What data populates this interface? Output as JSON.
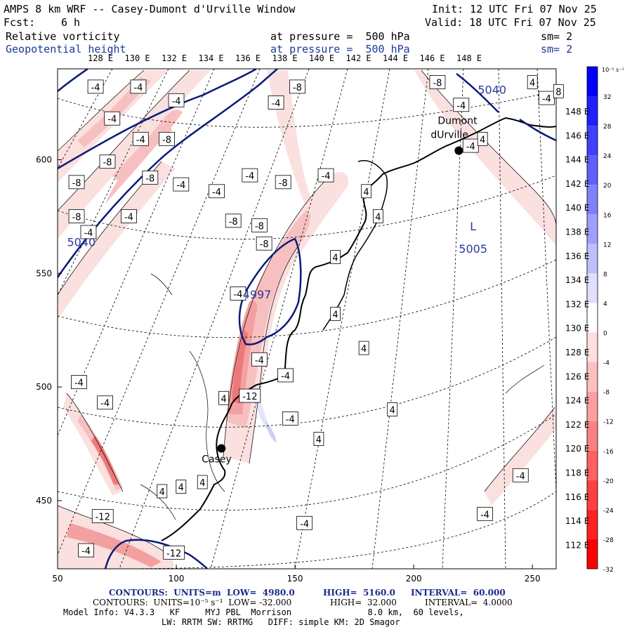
{
  "header": {
    "title": "AMPS 8 km WRF -- Casey-Dumont d'Urville Window",
    "init": "Init: 12 UTC Fri 07 Nov 25",
    "fcst_label": "Fcst:",
    "fcst_value": "6 h",
    "valid": "Valid: 18 UTC Fri 07 Nov 25",
    "field1_name": "Relative vorticity",
    "field1_level": "at pressure =  500 hPa",
    "field1_sm": "sm= 2",
    "field2_name": "Geopotential height",
    "field2_level": "at pressure =  500 hPa",
    "field2_sm": "sm= 2"
  },
  "colors": {
    "neg4": "#fbe0e0",
    "neg8": "#f7c0c0",
    "neg12": "#f3a0a0",
    "neg16": "#ee7878",
    "pos4": "#e3e6fb",
    "height_contour": "#0a1a7a",
    "coast": "#000000"
  },
  "chart_data": {
    "type": "contour-map",
    "x_axis": {
      "min": 50,
      "max": 260,
      "ticks": [
        50,
        100,
        150,
        200,
        250
      ]
    },
    "y_axis": {
      "min": 420,
      "max": 640,
      "ticks": [
        450,
        500,
        550,
        600
      ]
    },
    "lon_labels": [
      "128 E",
      "130 E",
      "132 E",
      "134 E",
      "136 E",
      "138 E",
      "140 E",
      "142 E",
      "144 E",
      "146 E",
      "148 E"
    ],
    "lat_labels_right": [
      "148 E",
      "146 E",
      "144 E",
      "142 E",
      "140 E",
      "138 E",
      "136 E",
      "134 E",
      "132 E",
      "130 E",
      "128 E",
      "126 E",
      "124 E",
      "122 E",
      "120 E",
      "118 E",
      "116 E",
      "114 E",
      "112 E"
    ],
    "colorbar": {
      "unit_label": "10⁻⁵ s⁻¹",
      "levels": [
        32,
        28,
        24,
        20,
        16,
        12,
        8,
        4,
        0,
        -4,
        -8,
        -12,
        -16,
        -20,
        -24,
        -28,
        -32
      ],
      "labels": [
        "32",
        "28",
        "24",
        "20",
        "16",
        "12",
        "8",
        "4",
        "0",
        "-4",
        "-8",
        "-12",
        "-16",
        "-20",
        "-24",
        "-28",
        "-32"
      ]
    },
    "stations": [
      {
        "name": "Dumont\ndUrville",
        "label1": "Dumont",
        "label2": "dUrville",
        "x": 219,
        "y": 604
      },
      {
        "name": "Casey",
        "label1": "Casey",
        "x": 119,
        "y": 473
      }
    ],
    "height_labels": [
      {
        "text": "5040",
        "x": 60,
        "y": 562
      },
      {
        "text": "5040",
        "x": 233,
        "y": 629
      },
      {
        "text": "4997",
        "x": 134,
        "y": 539
      },
      {
        "text": "L",
        "x": 225,
        "y": 569
      },
      {
        "text": "5005",
        "x": 225,
        "y": 559
      }
    ],
    "vort_labels": [
      {
        "text": "-4",
        "x": 66,
        "y": 632
      },
      {
        "text": "-4",
        "x": 84,
        "y": 632
      },
      {
        "text": "-4",
        "x": 73,
        "y": 618
      },
      {
        "text": "-4",
        "x": 100,
        "y": 626
      },
      {
        "text": "-4",
        "x": 85,
        "y": 609
      },
      {
        "text": "-8",
        "x": 96,
        "y": 609
      },
      {
        "text": "-8",
        "x": 71,
        "y": 599
      },
      {
        "text": "-8",
        "x": 89,
        "y": 592
      },
      {
        "text": "-8",
        "x": 58,
        "y": 590
      },
      {
        "text": "-4",
        "x": 102,
        "y": 589
      },
      {
        "text": "-4",
        "x": 80,
        "y": 575
      },
      {
        "text": "-8",
        "x": 58,
        "y": 575
      },
      {
        "text": "-4",
        "x": 63,
        "y": 568
      },
      {
        "text": "-4",
        "x": 142,
        "y": 625
      },
      {
        "text": "-8",
        "x": 151,
        "y": 632
      },
      {
        "text": "-4",
        "x": 131,
        "y": 593
      },
      {
        "text": "-4",
        "x": 117,
        "y": 586
      },
      {
        "text": "-8",
        "x": 145,
        "y": 590
      },
      {
        "text": "-4",
        "x": 163,
        "y": 593
      },
      {
        "text": "-8",
        "x": 135,
        "y": 571
      },
      {
        "text": "-8",
        "x": 137,
        "y": 563
      },
      {
        "text": "-4",
        "x": 126,
        "y": 541
      },
      {
        "text": "-4",
        "x": 135,
        "y": 512
      },
      {
        "text": "-4",
        "x": 146,
        "y": 505
      },
      {
        "text": "-12",
        "x": 131,
        "y": 496
      },
      {
        "text": "-4",
        "x": 148,
        "y": 486
      },
      {
        "text": "-4",
        "x": 59,
        "y": 502
      },
      {
        "text": "-4",
        "x": 70,
        "y": 493
      },
      {
        "text": "-12",
        "x": 69,
        "y": 443
      },
      {
        "text": "-4",
        "x": 62,
        "y": 428
      },
      {
        "text": "-12",
        "x": 99,
        "y": 427
      },
      {
        "text": "-8",
        "x": 210,
        "y": 634
      },
      {
        "text": "-4",
        "x": 220,
        "y": 624
      },
      {
        "text": "-4",
        "x": 224,
        "y": 606
      },
      {
        "text": "-4",
        "x": 256,
        "y": 627
      },
      {
        "text": "-4",
        "x": 245,
        "y": 461
      },
      {
        "text": "-4",
        "x": 230,
        "y": 444
      },
      {
        "text": "-4",
        "x": 154,
        "y": 440
      },
      {
        "text": "4",
        "x": 250,
        "y": 634
      },
      {
        "text": "8",
        "x": 261,
        "y": 630
      },
      {
        "text": "4",
        "x": 229,
        "y": 609
      },
      {
        "text": "4",
        "x": 180,
        "y": 586
      },
      {
        "text": "4",
        "x": 185,
        "y": 575
      },
      {
        "text": "4",
        "x": 167,
        "y": 557
      },
      {
        "text": "4",
        "x": 167,
        "y": 532
      },
      {
        "text": "4",
        "x": 179,
        "y": 517
      },
      {
        "text": "4",
        "x": 120,
        "y": 495
      },
      {
        "text": "4",
        "x": 191,
        "y": 490
      },
      {
        "text": "4",
        "x": 160,
        "y": 477
      },
      {
        "text": "4",
        "x": 111,
        "y": 458
      },
      {
        "text": "4",
        "x": 102,
        "y": 456
      },
      {
        "text": "4",
        "x": 94,
        "y": 454
      },
      {
        "text": "-8",
        "x": 124,
        "y": 573
      }
    ]
  },
  "footer": {
    "line1_a": "CONTOURS:  UNITS=m  LOW=  4980.0",
    "line1_b": "HIGH=  5160.0",
    "line1_c": "INTERVAL=  60.000",
    "line2_a": "CONTOURS:  UNITS=10⁻⁵ s⁻¹  LOW= -32.000",
    "line2_b": "HIGH=  32.000",
    "line2_c": "INTERVAL=  4.0000",
    "line3": "Model Info: V4.3.3   KF     MYJ PBL  Morrison               8.0 km,  60 levels,",
    "line4": "LW: RRTM SW: RRTMG   DIFF: simple KM: 2D Smagor"
  }
}
